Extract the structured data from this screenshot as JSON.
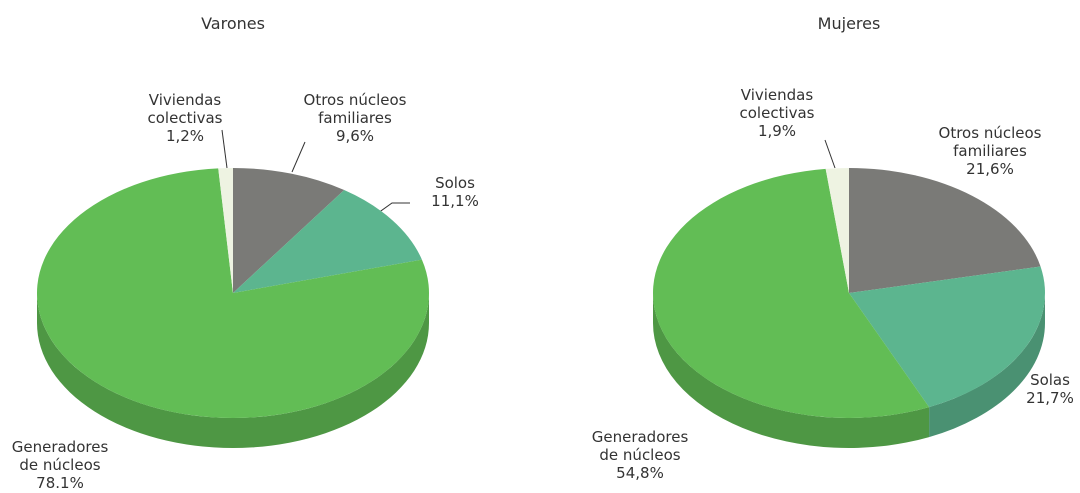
{
  "chart_data": [
    {
      "type": "pie",
      "title": "Varones",
      "categories": [
        "Otros núcleos familiares",
        "Solos",
        "Generadores de núcleos",
        "Viviendas colectivas"
      ],
      "values": [
        9.6,
        11.1,
        78.1,
        1.2
      ],
      "value_labels": [
        "9,6%",
        "11,1%",
        "78.1%",
        "1,2%"
      ],
      "colors": [
        "#7a7a77",
        "#5cb58f",
        "#62bd55",
        "#eef3e2"
      ]
    },
    {
      "type": "pie",
      "title": "Mujeres",
      "categories": [
        "Otros núcleos familiares",
        "Solas",
        "Generadores de núcleos",
        "Viviendas colectivas"
      ],
      "values": [
        21.6,
        21.7,
        54.8,
        1.9
      ],
      "value_labels": [
        "21,6%",
        "21,7%",
        "54,8%",
        "1,9%"
      ],
      "colors": [
        "#7a7a77",
        "#5cb58f",
        "#62bd55",
        "#eef3e2"
      ]
    }
  ]
}
